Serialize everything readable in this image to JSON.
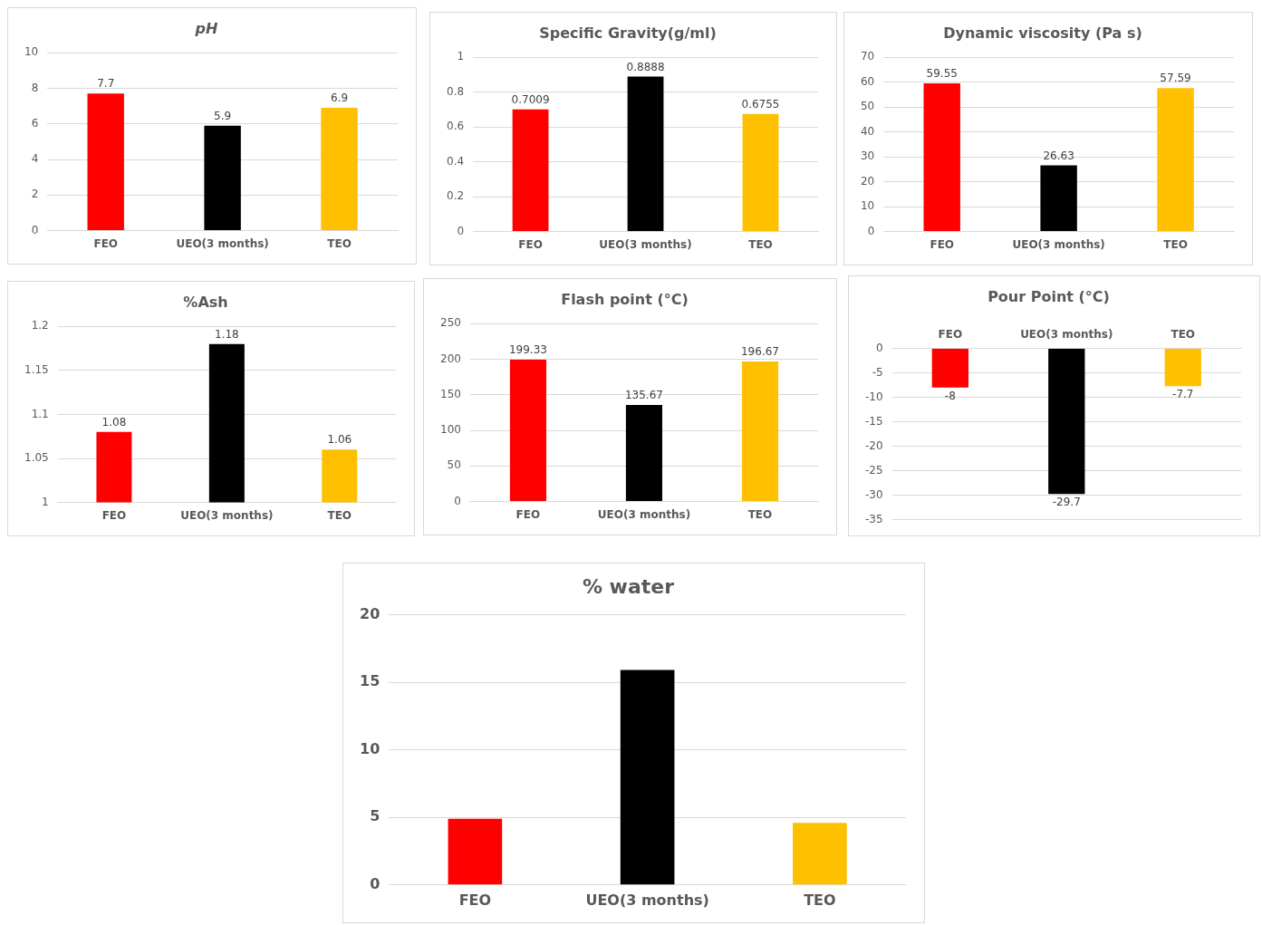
{
  "chart_data": [
    {
      "type": "bar",
      "title": "pH",
      "categories": [
        "FEO",
        "UEO(3 months)",
        "TEO"
      ],
      "values": [
        7.7,
        5.9,
        6.9
      ],
      "colors": [
        "#ff0000",
        "#000000",
        "#ffc000"
      ],
      "ylim": [
        0,
        10
      ],
      "yticks": [
        0,
        2,
        4,
        6,
        8,
        10
      ],
      "grid": "y",
      "data_labels": true
    },
    {
      "type": "bar",
      "title": "Specific Gravity(g/ml)",
      "categories": [
        "FEO",
        "UEO(3 months)",
        "TEO"
      ],
      "values": [
        0.7009,
        0.8888,
        0.6755
      ],
      "colors": [
        "#ff0000",
        "#000000",
        "#ffc000"
      ],
      "ylim": [
        0,
        1
      ],
      "yticks": [
        0,
        0.2,
        0.4,
        0.6,
        0.8,
        1
      ],
      "grid": "y",
      "data_labels": true
    },
    {
      "type": "bar",
      "title": "Dynamic viscosity (Pa s)",
      "categories": [
        "FEO",
        "UEO(3 months)",
        "TEO"
      ],
      "values": [
        59.55,
        26.63,
        57.59
      ],
      "colors": [
        "#ff0000",
        "#000000",
        "#ffc000"
      ],
      "ylim": [
        0,
        70
      ],
      "yticks": [
        0,
        10,
        20,
        30,
        40,
        50,
        60,
        70
      ],
      "grid": "y",
      "data_labels": true
    },
    {
      "type": "bar",
      "title": "%Ash",
      "categories": [
        "FEO",
        "UEO(3 months)",
        "TEO"
      ],
      "values": [
        1.08,
        1.18,
        1.06
      ],
      "colors": [
        "#ff0000",
        "#000000",
        "#ffc000"
      ],
      "ylim": [
        1,
        1.2
      ],
      "yticks": [
        1,
        1.05,
        1.1,
        1.15,
        1.2
      ],
      "grid": "y",
      "data_labels": true
    },
    {
      "type": "bar",
      "title": "Flash point (°C)",
      "categories": [
        "FEO",
        "UEO(3 months)",
        "TEO"
      ],
      "values": [
        199.33,
        135.67,
        196.67
      ],
      "colors": [
        "#ff0000",
        "#000000",
        "#ffc000"
      ],
      "ylim": [
        0,
        250
      ],
      "yticks": [
        0,
        50,
        100,
        150,
        200,
        250
      ],
      "grid": "y",
      "data_labels": true
    },
    {
      "type": "bar",
      "title": "Pour Point (°C)",
      "categories": [
        "FEO",
        "UEO(3 months)",
        "TEO"
      ],
      "values": [
        -8,
        -29.7,
        -7.7
      ],
      "colors": [
        "#ff0000",
        "#000000",
        "#ffc000"
      ],
      "ylim": [
        -35,
        0
      ],
      "yticks": [
        -35,
        -30,
        -25,
        -20,
        -15,
        -10,
        -5,
        0
      ],
      "grid": "y",
      "data_labels": true
    },
    {
      "type": "bar",
      "title": "% water",
      "categories": [
        "FEO",
        "UEO(3 months)",
        "TEO"
      ],
      "values": [
        4.9,
        15.9,
        4.6
      ],
      "colors": [
        "#ff0000",
        "#000000",
        "#ffc000"
      ],
      "ylim": [
        0,
        20
      ],
      "yticks": [
        0,
        5,
        10,
        15,
        20
      ],
      "grid": "y"
    }
  ]
}
